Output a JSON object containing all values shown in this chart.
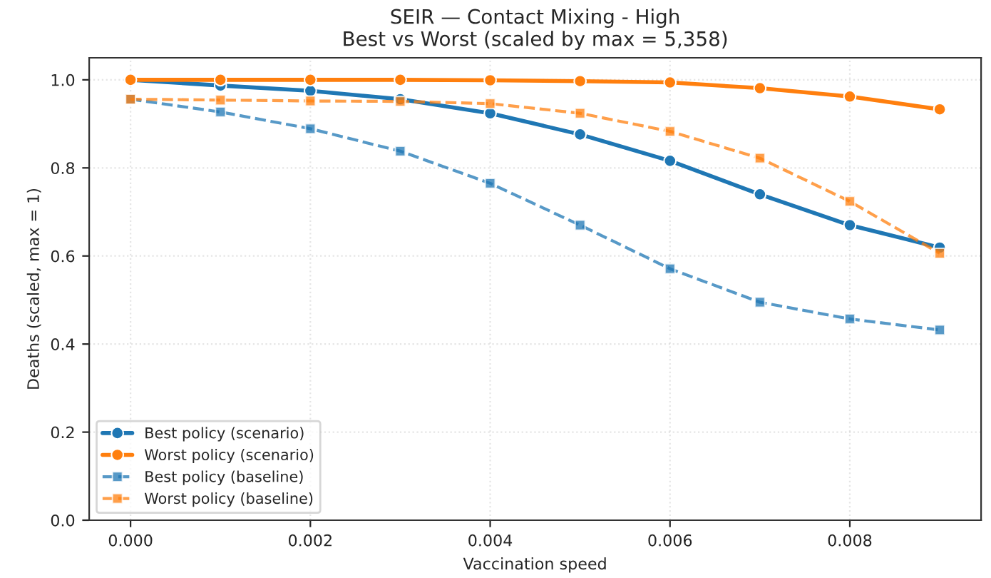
{
  "chart_data": {
    "type": "line",
    "title": "SEIR — Contact Mixing - High\nBest vs Worst (scaled by max = 5,358)",
    "xlabel": "Vaccination speed",
    "ylabel": "Deaths (scaled, max = 1)",
    "x": [
      0,
      0.001,
      0.002,
      0.003,
      0.004,
      0.005,
      0.006,
      0.007,
      0.008,
      0.009
    ],
    "series": [
      {
        "name": "Best policy (scenario)",
        "color": "#1f77b4",
        "marker": "circle",
        "line_style": "solid",
        "values": [
          1.0,
          0.987,
          0.975,
          0.956,
          0.924,
          0.876,
          0.816,
          0.74,
          0.67,
          0.619
        ]
      },
      {
        "name": "Worst policy (scenario)",
        "color": "#ff7f0e",
        "marker": "circle",
        "line_style": "solid",
        "values": [
          1.0,
          1.0,
          1.0,
          1.0,
          0.999,
          0.997,
          0.994,
          0.981,
          0.962,
          0.933
        ]
      },
      {
        "name": "Best policy (baseline)",
        "color": "#1f77b4",
        "marker": "square",
        "line_style": "dashed",
        "values": [
          0.956,
          0.927,
          0.889,
          0.838,
          0.765,
          0.67,
          0.571,
          0.495,
          0.457,
          0.432
        ]
      },
      {
        "name": "Worst policy (baseline)",
        "color": "#ff7f0e",
        "marker": "square",
        "line_style": "dashed",
        "values": [
          0.956,
          0.954,
          0.952,
          0.951,
          0.946,
          0.924,
          0.883,
          0.822,
          0.724,
          0.606
        ]
      }
    ],
    "xlim": [
      -0.00046,
      0.00946
    ],
    "ylim": [
      0,
      1.05
    ],
    "xticks": [
      {
        "value": 0,
        "label": "0.000"
      },
      {
        "value": 0.002,
        "label": "0.002"
      },
      {
        "value": 0.004,
        "label": "0.004"
      },
      {
        "value": 0.006,
        "label": "0.006"
      },
      {
        "value": 0.008,
        "label": "0.008"
      }
    ],
    "yticks": [
      {
        "value": 0,
        "label": "0.0"
      },
      {
        "value": 0.2,
        "label": "0.2"
      },
      {
        "value": 0.4,
        "label": "0.4"
      },
      {
        "value": 0.6,
        "label": "0.6"
      },
      {
        "value": 0.8,
        "label": "0.8"
      },
      {
        "value": 1.0,
        "label": "1.0"
      }
    ],
    "grid": true,
    "legend": "bottom left"
  }
}
